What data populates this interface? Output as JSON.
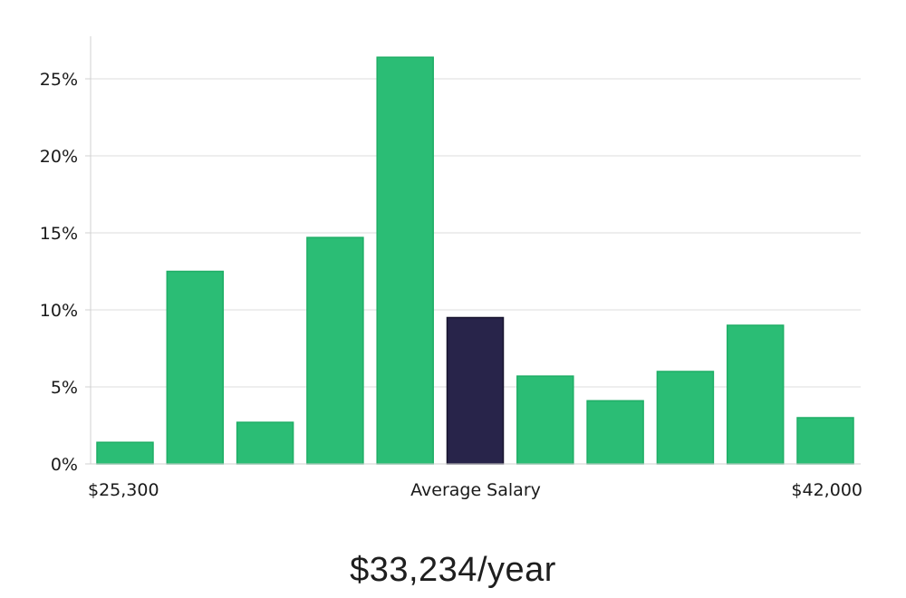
{
  "chart_data": {
    "type": "bar",
    "values": [
      1.4,
      12.5,
      2.7,
      14.7,
      26.4,
      9.5,
      5.7,
      4.1,
      6.0,
      9.0,
      3.0
    ],
    "highlight_index": 5,
    "ylim": [
      0,
      27.5
    ],
    "y_ticks": [
      0,
      5,
      10,
      15,
      20,
      25
    ],
    "y_tick_labels": [
      "0%",
      "5%",
      "10%",
      "15%",
      "20%",
      "25%"
    ],
    "x_labels": {
      "left": "$25,300",
      "center": "Average Salary",
      "right": "$42,000"
    },
    "grid": true,
    "colors": {
      "bar": "#2bbd75",
      "bar_edge": "#1fae66",
      "highlight": "#28244a",
      "highlight_edge": "#17142e",
      "grid": "#dedede",
      "axis": "#d0d0d0"
    }
  },
  "summary": {
    "average_salary": "$33,234/year"
  }
}
